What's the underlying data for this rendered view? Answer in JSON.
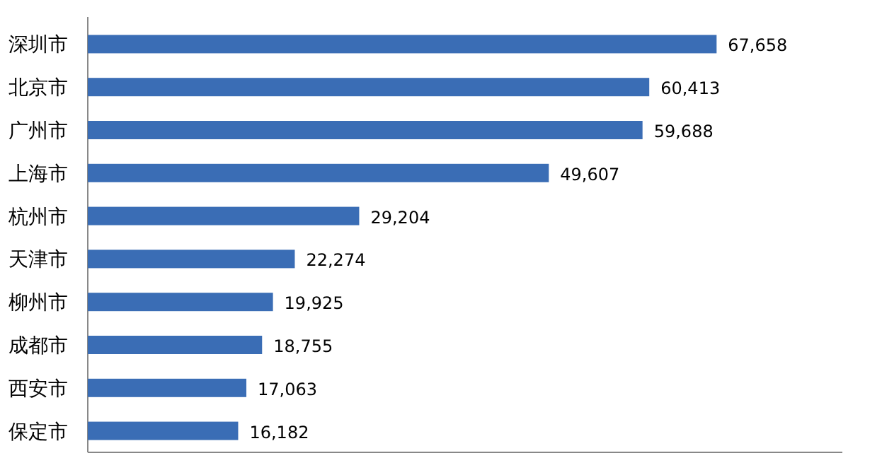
{
  "chart_data": {
    "type": "bar",
    "orientation": "horizontal",
    "categories": [
      "深圳市",
      "北京市",
      "广州市",
      "上海市",
      "杭州市",
      "天津市",
      "柳州市",
      "成都市",
      "西安市",
      "保定市"
    ],
    "values": [
      67658,
      60413,
      59688,
      49607,
      29204,
      22274,
      19925,
      18755,
      17063,
      16182
    ],
    "value_labels": [
      "67,658",
      "60,413",
      "59,688",
      "49,607",
      "29,204",
      "22,274",
      "19,925",
      "18,755",
      "17,063",
      "16,182"
    ],
    "color": "#3a6db5"
  }
}
